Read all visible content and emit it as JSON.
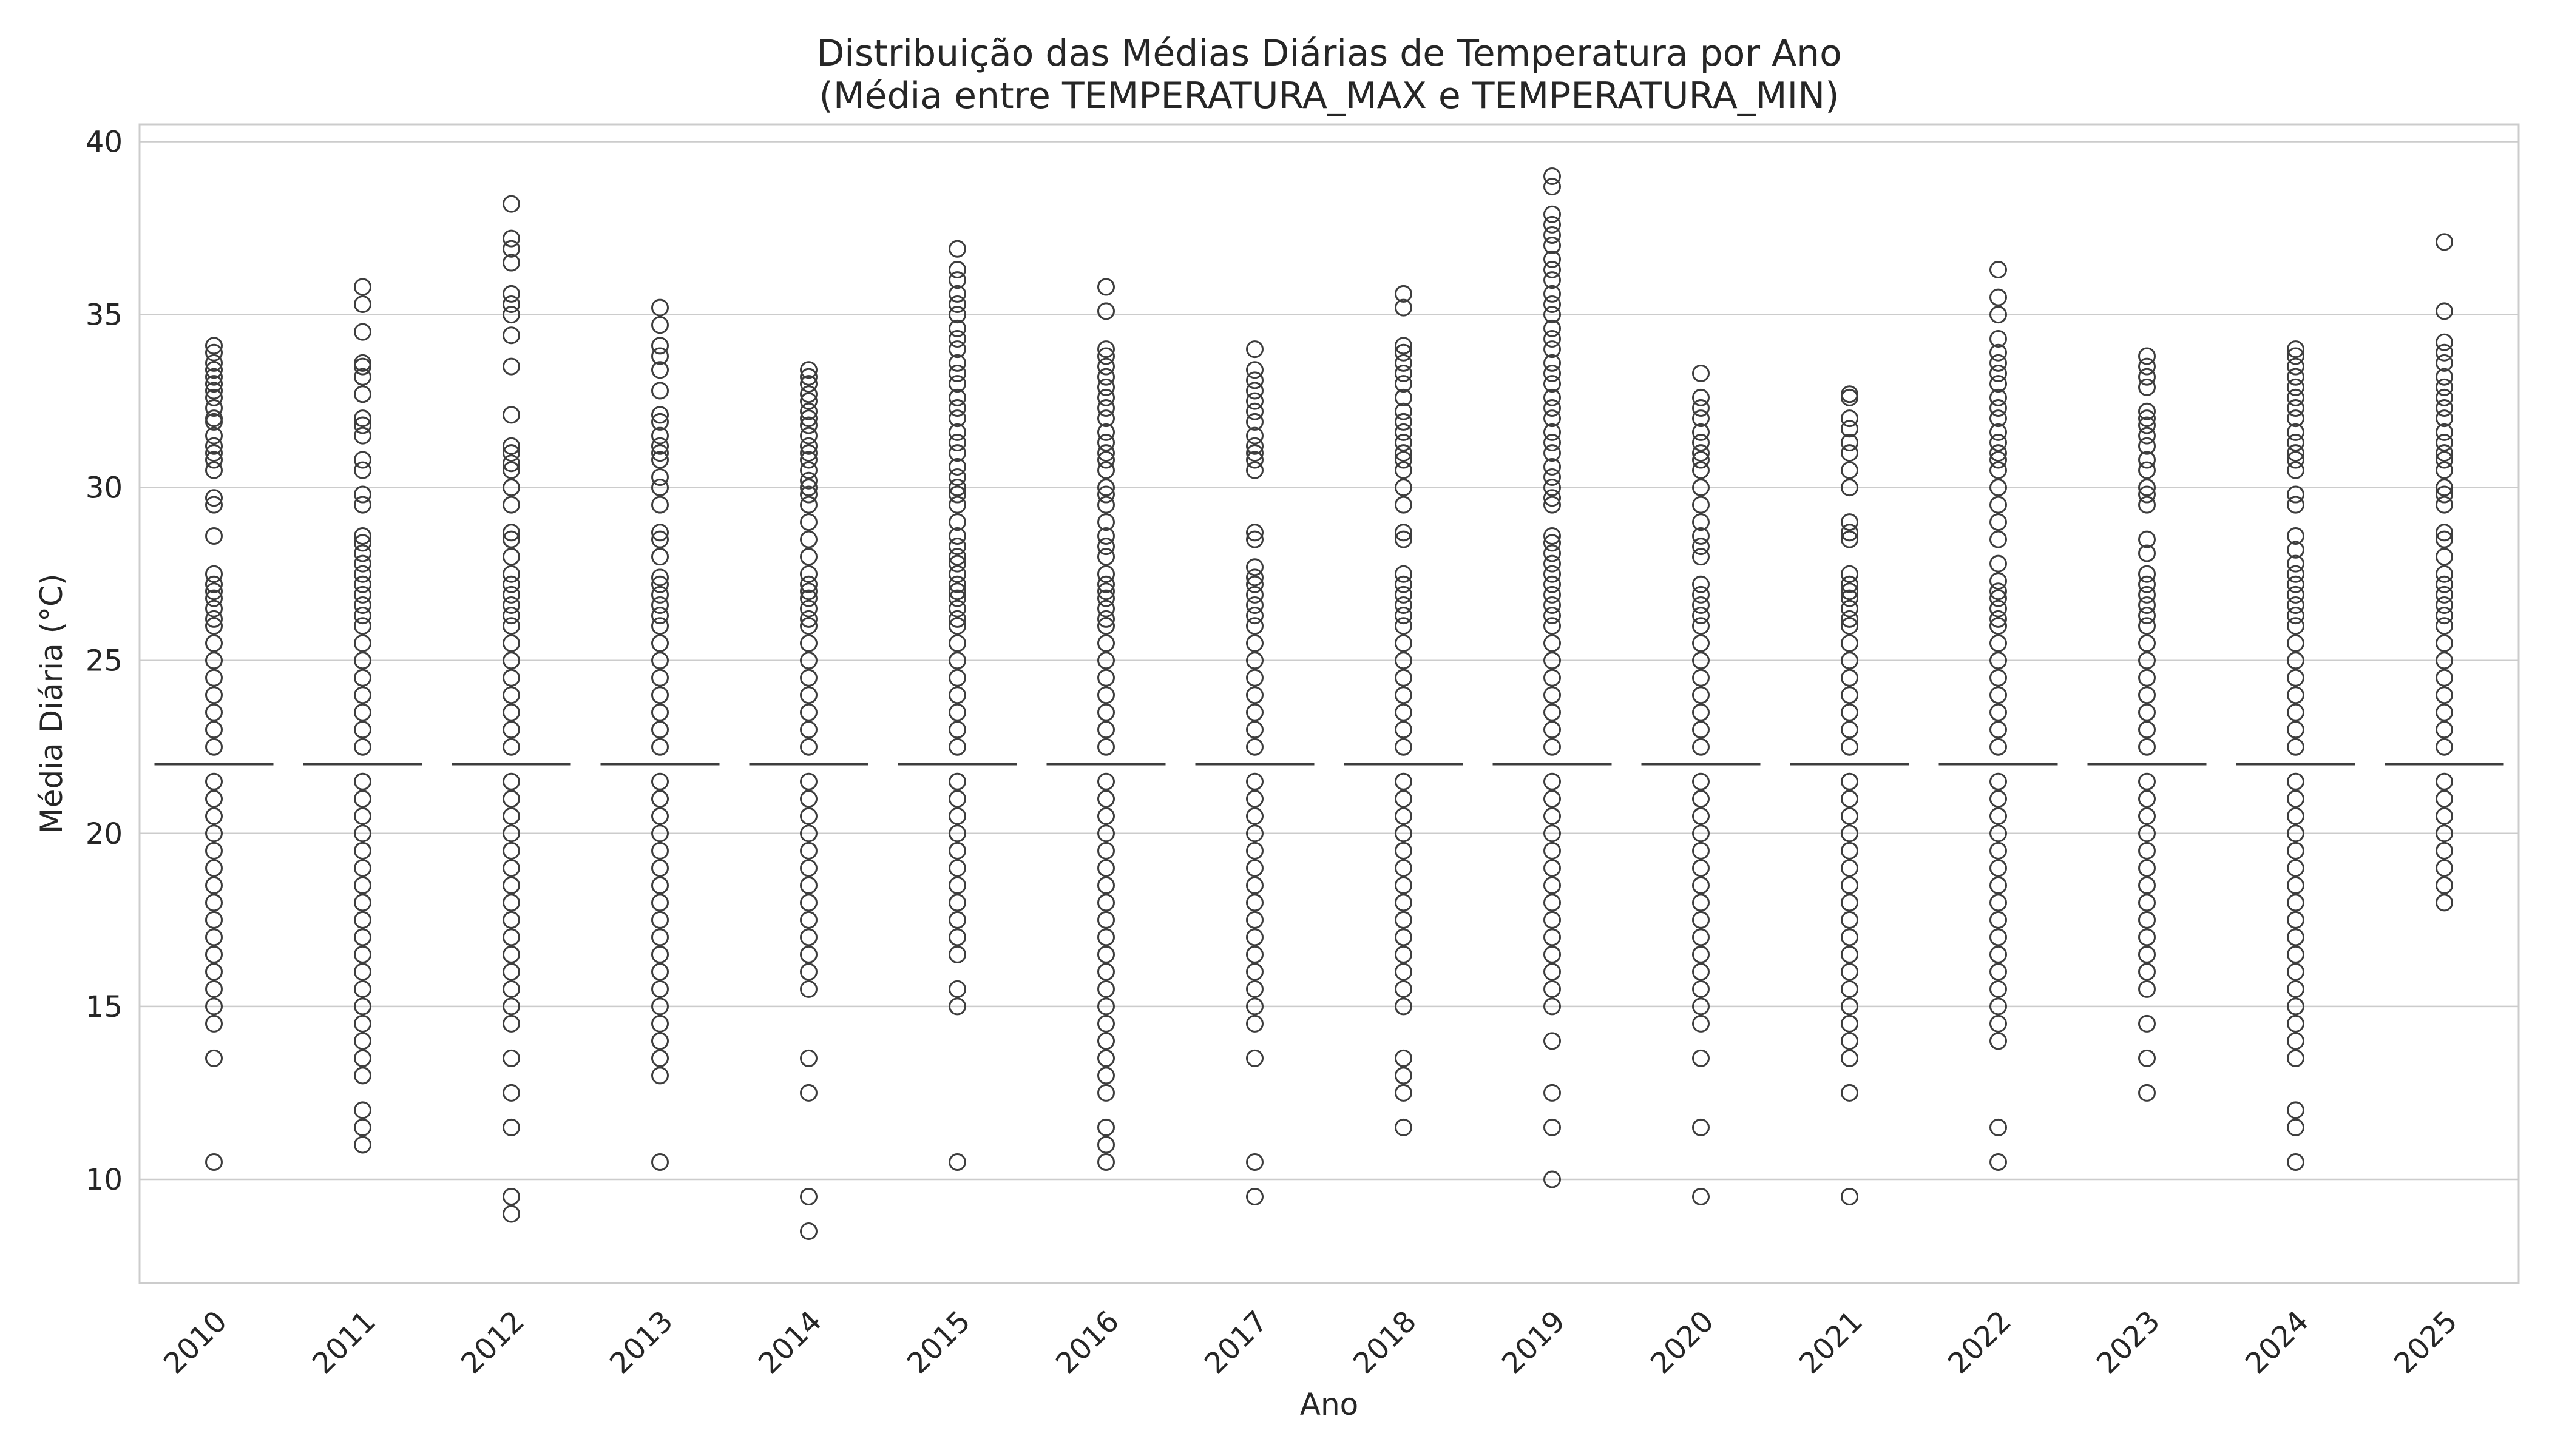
{
  "chart_data": {
    "type": "boxplot",
    "title": "Distribuição das Médias Diárias de Temperatura por Ano",
    "subtitle": "(Média entre TEMPERATURA_MAX e TEMPERATURA_MIN)",
    "xlabel": "Ano",
    "ylabel": "Média Diária (°C)",
    "ylim": [
      7,
      40.5
    ],
    "yticks": [
      10,
      15,
      20,
      25,
      30,
      35,
      40
    ],
    "grid": true,
    "x_tick_rotation_deg": 45,
    "colors": {
      "stroke": "#3d3d3d",
      "grid": "#cccccc",
      "frame": "#cccccc"
    },
    "categories": [
      "2010",
      "2011",
      "2012",
      "2013",
      "2014",
      "2015",
      "2016",
      "2017",
      "2018",
      "2019",
      "2020",
      "2021",
      "2022",
      "2023",
      "2024",
      "2025"
    ],
    "median": [
      22,
      22,
      22,
      22,
      22,
      22,
      22,
      22,
      22,
      22,
      22,
      22,
      22,
      22,
      22,
      22
    ],
    "outliers": [
      [
        10.5,
        13.5,
        14.5,
        15,
        15.5,
        16,
        16.5,
        17,
        17.5,
        18,
        18.5,
        19,
        19.5,
        20,
        20.5,
        21,
        21.5,
        22.5,
        23,
        23.5,
        24,
        24.5,
        25,
        25.5,
        26,
        26.2,
        26.5,
        26.8,
        27,
        27.2,
        27.5,
        28.6,
        29.5,
        29.7,
        30.5,
        30.8,
        31,
        31.2,
        31.5,
        31.9,
        32,
        32.3,
        32.6,
        32.8,
        33,
        33.2,
        33.4,
        33.6,
        33.9,
        34.1
      ],
      [
        11,
        11.5,
        12,
        13,
        13.5,
        14,
        14.5,
        15,
        15.5,
        16,
        16.5,
        17,
        17.5,
        18,
        18.5,
        19,
        19.5,
        20,
        20.5,
        21,
        21.5,
        22.5,
        23,
        23.5,
        24,
        24.5,
        25,
        25.5,
        26,
        26.3,
        26.6,
        26.9,
        27.2,
        27.5,
        27.8,
        28.1,
        28.4,
        28.6,
        29.5,
        29.8,
        30.5,
        30.8,
        31.5,
        31.8,
        32,
        32.7,
        33.2,
        33.5,
        33.6,
        34.5,
        35.3,
        35.8
      ],
      [
        9,
        9.5,
        11.5,
        12.5,
        13.5,
        14.5,
        15,
        15.5,
        16,
        16.5,
        17,
        17.5,
        18,
        18.5,
        19,
        19.5,
        20,
        20.5,
        21,
        21.5,
        22.5,
        23,
        23.5,
        24,
        24.5,
        25,
        25.5,
        26,
        26.3,
        26.6,
        26.9,
        27.2,
        27.5,
        28,
        28.5,
        28.7,
        29.5,
        30,
        30.5,
        30.7,
        31,
        31.2,
        32.1,
        33.5,
        34.4,
        35,
        35.3,
        35.6,
        36.5,
        36.9,
        37.2,
        38.2
      ],
      [
        10.5,
        13,
        13.5,
        14,
        14.5,
        15,
        15.5,
        16,
        16.5,
        17,
        17.5,
        18,
        18.5,
        19,
        19.5,
        20,
        20.5,
        21,
        21.5,
        22.5,
        23,
        23.5,
        24,
        24.5,
        25,
        25.5,
        26,
        26.3,
        26.6,
        26.9,
        27.2,
        27.4,
        28,
        28.5,
        28.7,
        29.5,
        30,
        30.3,
        30.8,
        31,
        31.2,
        31.5,
        31.9,
        32.1,
        32.8,
        33.4,
        33.8,
        34.1,
        34.7,
        35.2
      ],
      [
        8.5,
        9.5,
        12.5,
        13.5,
        15.5,
        16,
        16.5,
        17,
        17.5,
        18,
        18.5,
        19,
        19.5,
        20,
        20.5,
        21,
        21.5,
        22.5,
        23,
        23.5,
        24,
        24.5,
        25,
        25.5,
        26,
        26.2,
        26.5,
        26.8,
        27,
        27.2,
        27.5,
        28,
        28.5,
        29,
        29.5,
        29.8,
        30,
        30.2,
        30.5,
        30.8,
        31,
        31.2,
        31.5,
        31.8,
        32,
        32.2,
        32.5,
        32.7,
        33,
        33.2,
        33.4
      ],
      [
        10.5,
        15,
        15.5,
        16.5,
        17,
        17.5,
        18,
        18.5,
        19,
        19.5,
        20,
        20.5,
        21,
        21.5,
        22.5,
        23,
        23.5,
        24,
        24.5,
        25,
        25.5,
        26,
        26.2,
        26.5,
        26.8,
        27,
        27.2,
        27.5,
        27.8,
        28,
        28.3,
        28.6,
        29,
        29.5,
        29.8,
        30,
        30.3,
        30.6,
        31,
        31.3,
        31.6,
        32,
        32.3,
        32.6,
        33,
        33.3,
        33.6,
        34,
        34.3,
        34.6,
        35,
        35.3,
        35.6,
        36,
        36.3,
        36.9
      ],
      [
        10.5,
        11,
        11.5,
        12.5,
        13,
        13.5,
        14,
        14.5,
        15,
        15.5,
        16,
        16.5,
        17,
        17.5,
        18,
        18.5,
        19,
        19.5,
        20,
        20.5,
        21,
        21.5,
        22.5,
        23,
        23.5,
        24,
        24.5,
        25,
        25.5,
        26,
        26.2,
        26.5,
        26.8,
        27,
        27.2,
        27.5,
        28,
        28.3,
        28.6,
        29,
        29.5,
        29.8,
        30,
        30.5,
        30.8,
        31,
        31.3,
        31.6,
        32,
        32.3,
        32.6,
        32.9,
        33.2,
        33.5,
        33.8,
        34,
        35.1,
        35.8
      ],
      [
        9.5,
        10.5,
        13.5,
        14.5,
        15,
        15.5,
        16,
        16.5,
        17,
        17.5,
        18,
        18.5,
        19,
        19.5,
        20,
        20.5,
        21,
        21.5,
        22.5,
        23,
        23.5,
        24,
        24.5,
        25,
        25.5,
        26,
        26.3,
        26.6,
        26.9,
        27.2,
        27.4,
        27.7,
        28.5,
        28.7,
        30.5,
        30.8,
        31,
        31.2,
        31.5,
        31.9,
        32.2,
        32.5,
        32.8,
        33.1,
        33.4,
        34
      ],
      [
        11.5,
        12.5,
        13,
        13.5,
        15,
        15.5,
        16,
        16.5,
        17,
        17.5,
        18,
        18.5,
        19,
        19.5,
        20,
        20.5,
        21,
        21.5,
        22.5,
        23,
        23.5,
        24,
        24.5,
        25,
        25.5,
        26,
        26.3,
        26.6,
        26.9,
        27.2,
        27.5,
        28.5,
        28.7,
        29.5,
        30,
        30.5,
        30.8,
        31,
        31.3,
        31.6,
        31.9,
        32.2,
        32.6,
        33,
        33.3,
        33.6,
        33.9,
        34.1,
        35.2,
        35.6
      ],
      [
        10,
        11.5,
        12.5,
        14,
        15,
        15.5,
        16,
        16.5,
        17,
        17.5,
        18,
        18.5,
        19,
        19.5,
        20,
        20.5,
        21,
        21.5,
        22.5,
        23,
        23.5,
        24,
        24.5,
        25,
        25.5,
        26,
        26.3,
        26.6,
        26.9,
        27.2,
        27.5,
        27.8,
        28.1,
        28.4,
        28.6,
        29.5,
        29.7,
        30,
        30.3,
        30.6,
        31,
        31.3,
        31.6,
        32,
        32.3,
        32.6,
        33,
        33.3,
        33.6,
        34,
        34.3,
        34.6,
        35,
        35.3,
        35.6,
        36,
        36.3,
        36.6,
        37,
        37.3,
        37.6,
        37.9,
        38.7,
        39
      ],
      [
        9.5,
        11.5,
        13.5,
        14.5,
        15,
        15.5,
        16,
        16.5,
        17,
        17.5,
        18,
        18.5,
        19,
        19.5,
        20,
        20.5,
        21,
        21.5,
        22.5,
        23,
        23.5,
        24,
        24.5,
        25,
        25.5,
        26,
        26.3,
        26.6,
        26.9,
        27.2,
        28,
        28.3,
        28.6,
        29,
        29.5,
        30,
        30.5,
        30.8,
        31,
        31.3,
        31.6,
        32,
        32.3,
        32.6,
        33.3
      ],
      [
        9.5,
        12.5,
        13.5,
        14,
        14.5,
        15,
        15.5,
        16,
        16.5,
        17,
        17.5,
        18,
        18.5,
        19,
        19.5,
        20,
        20.5,
        21,
        21.5,
        22.5,
        23,
        23.5,
        24,
        24.5,
        25,
        25.5,
        26,
        26.2,
        26.5,
        26.8,
        27,
        27.2,
        27.5,
        28.5,
        28.7,
        29,
        30,
        30.5,
        31,
        31.3,
        31.7,
        32,
        32.6,
        32.7
      ],
      [
        10.5,
        11.5,
        14,
        14.5,
        15,
        15.5,
        16,
        16.5,
        17,
        17.5,
        18,
        18.5,
        19,
        19.5,
        20,
        20.5,
        21,
        21.5,
        22.5,
        23,
        23.5,
        24,
        24.5,
        25,
        25.5,
        26,
        26.2,
        26.5,
        26.8,
        27,
        27.3,
        27.8,
        28.5,
        29,
        29.5,
        30,
        30.5,
        30.8,
        31,
        31.3,
        31.6,
        32,
        32.3,
        32.6,
        33,
        33.3,
        33.6,
        33.9,
        34.3,
        35,
        35.5,
        36.3
      ],
      [
        12.5,
        13.5,
        14.5,
        15.5,
        16,
        16.5,
        17,
        17.5,
        18,
        18.5,
        19,
        19.5,
        20,
        20.5,
        21,
        21.5,
        22.5,
        23,
        23.5,
        24,
        24.5,
        25,
        25.5,
        26,
        26.3,
        26.6,
        26.9,
        27.2,
        27.5,
        28.1,
        28.5,
        29.5,
        29.8,
        30,
        30.5,
        30.8,
        31.2,
        31.5,
        31.8,
        32,
        32.2,
        32.9,
        33.2,
        33.5,
        33.8
      ],
      [
        10.5,
        11.5,
        12,
        13.5,
        14,
        14.5,
        15,
        15.5,
        16,
        16.5,
        17,
        17.5,
        18,
        18.5,
        19,
        19.5,
        20,
        20.5,
        21,
        21.5,
        22.5,
        23,
        23.5,
        24,
        24.5,
        25,
        25.5,
        26,
        26.3,
        26.6,
        26.9,
        27.2,
        27.5,
        27.8,
        28.2,
        28.6,
        29.5,
        29.8,
        30.5,
        30.8,
        31,
        31.3,
        31.6,
        32,
        32.3,
        32.6,
        32.9,
        33.2,
        33.5,
        33.8,
        34
      ],
      [
        18,
        18.5,
        19,
        19.5,
        20,
        20.5,
        21,
        21.5,
        22.5,
        23,
        23.5,
        24,
        24.5,
        25,
        25.5,
        26,
        26.3,
        26.6,
        26.9,
        27.2,
        27.5,
        28,
        28.5,
        28.7,
        29.5,
        29.8,
        30,
        30.5,
        30.8,
        31,
        31.3,
        31.6,
        32,
        32.3,
        32.6,
        32.9,
        33.2,
        33.6,
        33.9,
        34.2,
        35.1,
        37.1
      ]
    ]
  }
}
